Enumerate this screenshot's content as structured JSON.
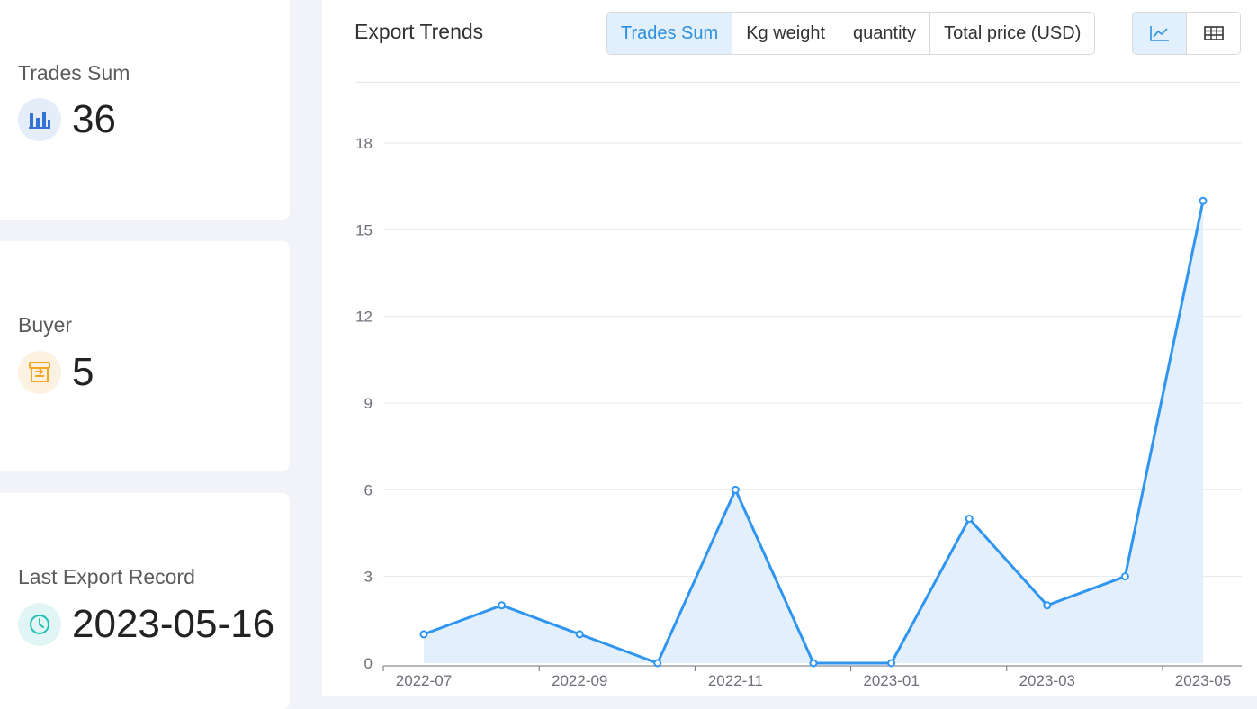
{
  "stats": {
    "trades_sum": {
      "label": "Trades Sum",
      "value": "36",
      "icon": "bar-chart-icon",
      "color": "#3572d6",
      "bg": "#e5edf9"
    },
    "buyer": {
      "label": "Buyer",
      "value": "5",
      "icon": "shop-icon",
      "color": "#f5a623",
      "bg": "#fdf1e1"
    },
    "last_export": {
      "label": "Last Export Record",
      "value": "2023-05-16",
      "icon": "clock-icon",
      "color": "#1fbfb3",
      "bg": "#e1f6f4"
    }
  },
  "panel": {
    "title": "Export Trends",
    "metric_tabs": [
      "Trades Sum",
      "Kg weight",
      "quantity",
      "Total price (USD)"
    ],
    "active_metric": "Trades Sum",
    "view_tabs": [
      {
        "name": "line-chart-icon",
        "active": true
      },
      {
        "name": "table-icon",
        "active": false
      }
    ],
    "accent": "#2d8fe0"
  },
  "chart_data": {
    "type": "area",
    "x": [
      "2022-07",
      "2022-08",
      "2022-09",
      "2022-10",
      "2022-11",
      "2022-12",
      "2023-01",
      "2023-02",
      "2023-03",
      "2023-04",
      "2023-05"
    ],
    "x_tick_labels": [
      "2022-07",
      "2022-09",
      "2022-11",
      "2023-01",
      "2023-03",
      "2023-05"
    ],
    "series": [
      {
        "values": [
          1,
          2,
          1,
          0,
          6,
          0,
          0,
          5,
          2,
          3,
          16
        ]
      }
    ],
    "y_ticks": [
      0,
      3,
      6,
      9,
      12,
      15,
      18
    ],
    "ylim": [
      0,
      18
    ],
    "grid": true,
    "line_color": "#2f95f0",
    "fill_color": "#e3f0fc"
  }
}
